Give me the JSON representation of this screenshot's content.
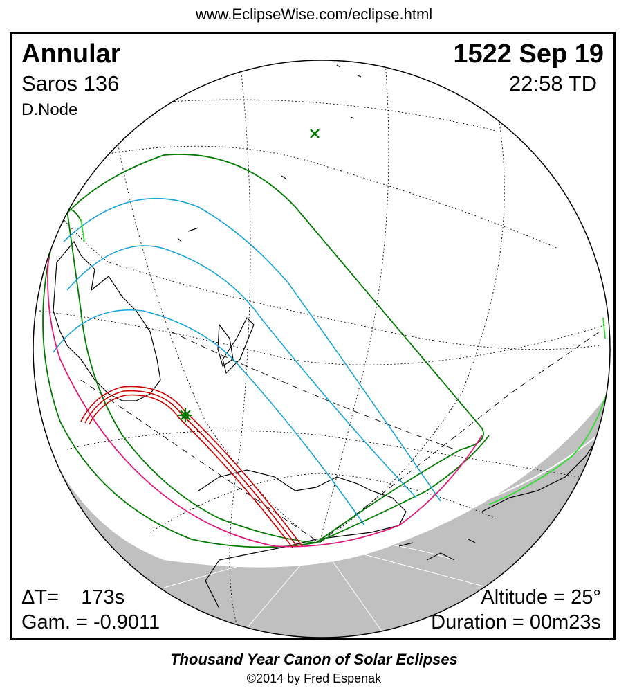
{
  "header": {
    "url": "www.EclipseWise.com/eclipse.html"
  },
  "eclipse": {
    "type": "Annular",
    "date": "1522 Sep 19",
    "saros": "Saros 136",
    "time": "22:58 TD",
    "node": "D.Node",
    "delta_t": "ΔT=    173s",
    "gamma": "Gam. = -0.9011",
    "altitude": "Altitude = 25°",
    "duration": "Duration = 00m23s"
  },
  "footer": {
    "title": "Thousand Year Canon of Solar Eclipses",
    "copyright": "©2014 by Fred Espenak"
  },
  "colors": {
    "night_shade": "#c0c0c0",
    "grid": "#000000",
    "annular_path": "#cc0000",
    "penumbra_limits": "#007a00",
    "magnitude_lines": "#1aa3d9",
    "rise_set_curve": "#e0187a",
    "sunrise_limit": "#33dd33"
  },
  "markers": {
    "greatest_eclipse": "star-icon",
    "subsolar_point": "x-mark-icon"
  }
}
